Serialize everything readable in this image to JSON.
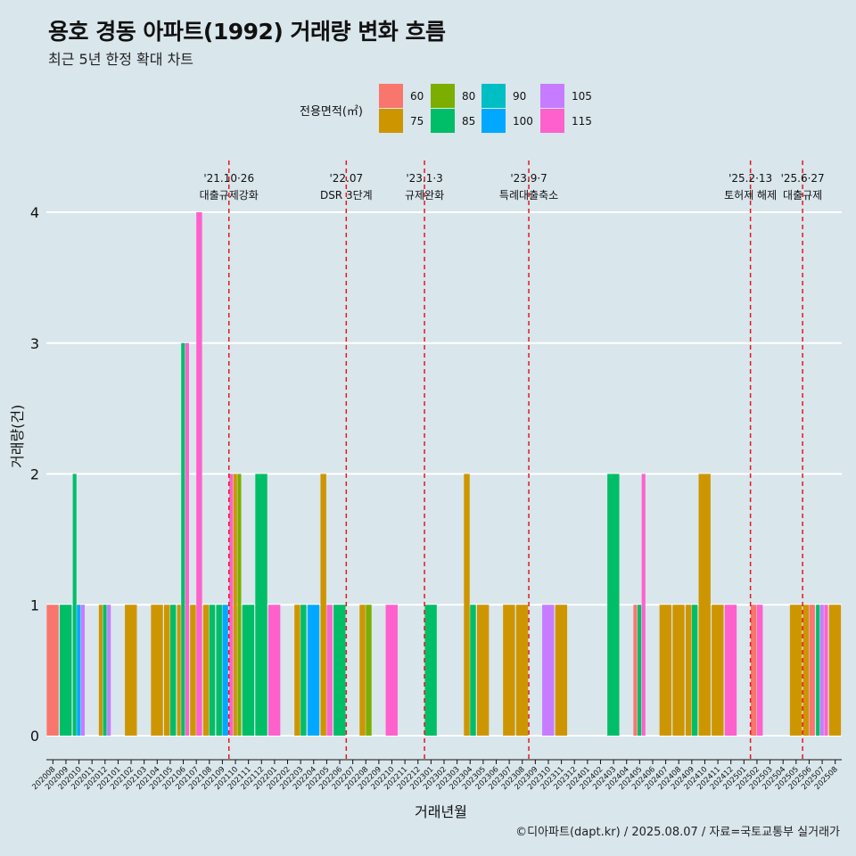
{
  "title": "용호 경동 아파트(1992) 거래량 변화 흐름",
  "subtitle": "최근 5년 한정 확대 차트",
  "caption": "©디아파트(dapt.kr) / 2025.08.07 / 자료=국토교통부 실거래가",
  "legend": {
    "title": "전용면적(㎡)",
    "items": [
      {
        "label": "60",
        "color": "#F8766D"
      },
      {
        "label": "75",
        "color": "#CD9600"
      },
      {
        "label": "80",
        "color": "#7CAE00"
      },
      {
        "label": "85",
        "color": "#00BE67"
      },
      {
        "label": "90",
        "color": "#00BFC4"
      },
      {
        "label": "100",
        "color": "#00A9FF"
      },
      {
        "label": "105",
        "color": "#C77CFF"
      },
      {
        "label": "115",
        "color": "#FF61CC"
      }
    ]
  },
  "chart_data": {
    "type": "bar",
    "stacking": "dodge",
    "xlabel": "거래년월",
    "ylabel": "거래량(건)",
    "ylim": [
      0,
      4
    ],
    "yticks": [
      0,
      1,
      2,
      3,
      4
    ],
    "grid": true,
    "legend_position": "top",
    "categories": [
      "202008",
      "202009",
      "202010",
      "202011",
      "202012",
      "202101",
      "202102",
      "202103",
      "202104",
      "202105",
      "202106",
      "202107",
      "202108",
      "202109",
      "202110",
      "202111",
      "202112",
      "202201",
      "202202",
      "202203",
      "202204",
      "202205",
      "202206",
      "202207",
      "202208",
      "202209",
      "202210",
      "202211",
      "202212",
      "202301",
      "202302",
      "202303",
      "202304",
      "202305",
      "202306",
      "202307",
      "202308",
      "202309",
      "202310",
      "202311",
      "202312",
      "202401",
      "202402",
      "202403",
      "202404",
      "202405",
      "202406",
      "202407",
      "202408",
      "202409",
      "202410",
      "202411",
      "202412",
      "202501",
      "202502",
      "202503",
      "202504",
      "202505",
      "202506",
      "202507",
      "202508"
    ],
    "bars": [
      {
        "month": "202008",
        "groups": [
          [
            "60",
            1
          ]
        ]
      },
      {
        "month": "202009",
        "groups": [
          [
            "85",
            1
          ]
        ]
      },
      {
        "month": "202010",
        "groups": [
          [
            "85",
            2
          ],
          [
            "100",
            1
          ],
          [
            "105",
            1
          ]
        ]
      },
      {
        "month": "202012",
        "groups": [
          [
            "75",
            1
          ],
          [
            "85",
            1
          ],
          [
            "105",
            1
          ]
        ]
      },
      {
        "month": "202102",
        "groups": [
          [
            "75",
            1
          ]
        ]
      },
      {
        "month": "202104",
        "groups": [
          [
            "75",
            1
          ]
        ]
      },
      {
        "month": "202105",
        "groups": [
          [
            "75",
            1
          ],
          [
            "85",
            1
          ]
        ]
      },
      {
        "month": "202106",
        "groups": [
          [
            "75",
            1
          ],
          [
            "85",
            3
          ],
          [
            "115",
            3
          ]
        ]
      },
      {
        "month": "202107",
        "groups": [
          [
            "75",
            1
          ],
          [
            "115",
            4
          ]
        ]
      },
      {
        "month": "202108",
        "groups": [
          [
            "75",
            1
          ],
          [
            "85",
            1
          ]
        ]
      },
      {
        "month": "202109",
        "groups": [
          [
            "85",
            1
          ],
          [
            "100",
            1
          ]
        ]
      },
      {
        "month": "202110",
        "groups": [
          [
            "115",
            2
          ],
          [
            "75",
            2
          ],
          [
            "80",
            2
          ]
        ]
      },
      {
        "month": "202111",
        "groups": [
          [
            "85",
            1
          ]
        ]
      },
      {
        "month": "202112",
        "groups": [
          [
            "85",
            2
          ]
        ]
      },
      {
        "month": "202201",
        "groups": [
          [
            "115",
            1
          ]
        ]
      },
      {
        "month": "202203",
        "groups": [
          [
            "75",
            1
          ],
          [
            "85",
            1
          ]
        ]
      },
      {
        "month": "202204",
        "groups": [
          [
            "100",
            1
          ]
        ]
      },
      {
        "month": "202205",
        "groups": [
          [
            "75",
            2
          ],
          [
            "115",
            1
          ]
        ]
      },
      {
        "month": "202206",
        "groups": [
          [
            "85",
            1
          ]
        ]
      },
      {
        "month": "202208",
        "groups": [
          [
            "75",
            1
          ],
          [
            "80",
            1
          ]
        ]
      },
      {
        "month": "202210",
        "groups": [
          [
            "115",
            1
          ]
        ]
      },
      {
        "month": "202301",
        "groups": [
          [
            "85",
            1
          ]
        ]
      },
      {
        "month": "202304",
        "groups": [
          [
            "75",
            2
          ],
          [
            "85",
            1
          ]
        ]
      },
      {
        "month": "202305",
        "groups": [
          [
            "75",
            1
          ]
        ]
      },
      {
        "month": "202307",
        "groups": [
          [
            "75",
            1
          ]
        ]
      },
      {
        "month": "202308",
        "groups": [
          [
            "75",
            1
          ]
        ]
      },
      {
        "month": "202310",
        "groups": [
          [
            "105",
            1
          ]
        ]
      },
      {
        "month": "202311",
        "groups": [
          [
            "75",
            1
          ]
        ]
      },
      {
        "month": "202403",
        "groups": [
          [
            "85",
            2
          ]
        ]
      },
      {
        "month": "202405",
        "groups": [
          [
            "60",
            1
          ],
          [
            "85",
            1
          ],
          [
            "115",
            2
          ]
        ]
      },
      {
        "month": "202407",
        "groups": [
          [
            "75",
            1
          ]
        ]
      },
      {
        "month": "202408",
        "groups": [
          [
            "75",
            1
          ]
        ]
      },
      {
        "month": "202409",
        "groups": [
          [
            "75",
            1
          ],
          [
            "85",
            1
          ]
        ]
      },
      {
        "month": "202410",
        "groups": [
          [
            "75",
            2
          ]
        ]
      },
      {
        "month": "202411",
        "groups": [
          [
            "75",
            1
          ]
        ]
      },
      {
        "month": "202412",
        "groups": [
          [
            "115",
            1
          ]
        ]
      },
      {
        "month": "202502",
        "groups": [
          [
            "60",
            1
          ],
          [
            "115",
            1
          ]
        ]
      },
      {
        "month": "202505",
        "groups": [
          [
            "75",
            1
          ]
        ]
      },
      {
        "month": "202506",
        "groups": [
          [
            "75",
            1
          ],
          [
            "60",
            1
          ]
        ]
      },
      {
        "month": "202507",
        "groups": [
          [
            "85",
            1
          ],
          [
            "105",
            1
          ],
          [
            "115",
            1
          ]
        ]
      },
      {
        "month": "202508",
        "groups": [
          [
            "75",
            1
          ]
        ]
      }
    ],
    "events": [
      {
        "date": "202110",
        "label1": "'21.10·26",
        "label2": "대출규제강화"
      },
      {
        "date": "202207",
        "label1": "'22.07",
        "label2": "DSR 3단계"
      },
      {
        "date": "202301",
        "label1": "'23.1·3",
        "label2": "규제완화"
      },
      {
        "date": "202309",
        "label1": "'23.9·7",
        "label2": "특례대출축소"
      },
      {
        "date": "202502",
        "label1": "'25.2·13",
        "label2": "토허제 해제"
      },
      {
        "date": "202506",
        "label1": "'25.6·27",
        "label2": "대출규제"
      }
    ]
  }
}
